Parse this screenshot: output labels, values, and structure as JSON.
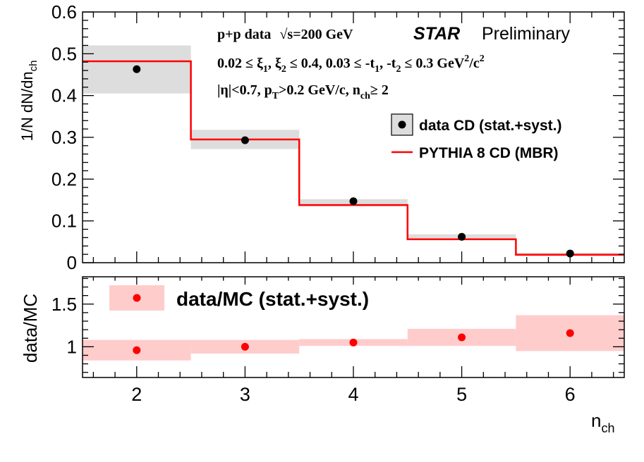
{
  "colors": {
    "data_band": "#dddddd",
    "mc_line": "#ff0000",
    "ratio_band": "#ffcccc",
    "ratio_marker": "#ff0000",
    "data_marker": "#000000"
  },
  "text": {
    "line1_a": "p+p data",
    "line1_sqrt": "√",
    "line1_b": "s=200 GeV",
    "star": "STAR",
    "preliminary": "Preliminary",
    "xi_range": "0.02  ≤  ξ",
    "xi_sub1": "1",
    "xi_comma": ",  ξ",
    "xi_sub2": "2",
    "xi_upper": "  ≤ 0.4, 0.03  ≤ -t",
    "t_sub1": "1",
    "t_mid": ", -t",
    "t_sub2": "2",
    "t_upper": "  ≤ 0.3 GeV",
    "t_sup": "2",
    "t_over": "/c",
    "t_sup2": "2",
    "eta_a": "|η|<0.7, p",
    "eta_sub": "T",
    "eta_b": ">0.2 GeV/c, n",
    "eta_sub2": "ch",
    "eta_c": "≥ 2"
  },
  "chart_data": [
    {
      "type": "bar",
      "title": "",
      "xlabel": "",
      "ylabel": "1/N dN/dn",
      "ylabel_sub": "ch",
      "xlim": [
        1.5,
        6.5
      ],
      "ylim": [
        0,
        0.6
      ],
      "yticks": [
        "0",
        "0.1",
        "0.2",
        "0.3",
        "0.4",
        "0.5",
        "0.6"
      ],
      "legend": [
        {
          "label": "data CD (stat.+syst.)"
        },
        {
          "label": "PYTHIA 8 CD (MBR)"
        }
      ],
      "series": [
        {
          "name": "data CD (stat.+syst.)",
          "x": [
            2,
            3,
            4,
            5,
            6
          ],
          "values": [
            0.463,
            0.293,
            0.147,
            0.062,
            0.022
          ],
          "band_low": [
            0.405,
            0.272,
            0.135,
            0.055,
            0.018
          ],
          "band_high": [
            0.52,
            0.318,
            0.152,
            0.068,
            0.024
          ]
        },
        {
          "name": "PYTHIA 8 CD (MBR)",
          "x": [
            2,
            3,
            4,
            5,
            6
          ],
          "values": [
            0.482,
            0.295,
            0.138,
            0.056,
            0.019
          ]
        }
      ]
    },
    {
      "type": "scatter",
      "title": "",
      "xlabel": "n",
      "xlabel_sub": "ch",
      "ylabel": "data/MC",
      "xlim": [
        1.5,
        6.5
      ],
      "ylim": [
        0.64,
        1.82
      ],
      "xticks": [
        "2",
        "3",
        "4",
        "5",
        "6"
      ],
      "yticks": [
        "1",
        "1.5"
      ],
      "legend": [
        {
          "label": "data/MC (stat.+syst.)"
        }
      ],
      "series": [
        {
          "name": "data/MC (stat.+syst.)",
          "x": [
            2,
            3,
            4,
            5,
            6
          ],
          "values": [
            0.96,
            1.0,
            1.05,
            1.11,
            1.16
          ],
          "band_low": [
            0.84,
            0.92,
            1.01,
            1.01,
            0.95
          ],
          "band_high": [
            1.08,
            1.08,
            1.09,
            1.21,
            1.37
          ]
        }
      ]
    }
  ]
}
